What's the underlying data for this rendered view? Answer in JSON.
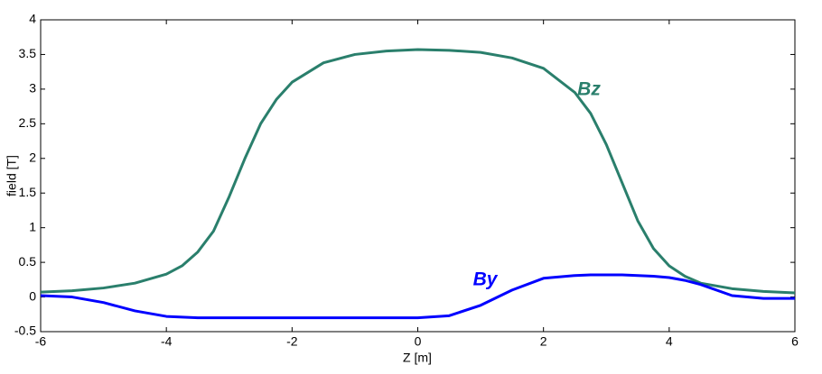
{
  "chart_data": {
    "type": "line",
    "xlabel": "Z [m]",
    "ylabel": "field [T]",
    "x": [
      -6,
      -5.5,
      -5,
      -4.5,
      -4,
      -3.75,
      -3.5,
      -3.25,
      -3,
      -2.75,
      -2.5,
      -2.25,
      -2,
      -1.5,
      -1,
      -0.5,
      0,
      0.5,
      1,
      1.5,
      2,
      2.5,
      2.75,
      3,
      3.25,
      3.5,
      3.75,
      4,
      4.25,
      4.5,
      5,
      5.5,
      6
    ],
    "series": [
      {
        "name": "Bz",
        "color": "#2a7f6c",
        "values": [
          0.07,
          0.09,
          0.13,
          0.2,
          0.33,
          0.45,
          0.65,
          0.95,
          1.45,
          2.0,
          2.5,
          2.85,
          3.1,
          3.38,
          3.5,
          3.55,
          3.57,
          3.56,
          3.53,
          3.45,
          3.3,
          2.95,
          2.65,
          2.2,
          1.65,
          1.1,
          0.7,
          0.45,
          0.3,
          0.2,
          0.12,
          0.08,
          0.06
        ]
      },
      {
        "name": "By",
        "color": "#0000ff",
        "values": [
          0.02,
          0,
          -0.08,
          -0.2,
          -0.28,
          -0.29,
          -0.3,
          -0.3,
          -0.3,
          -0.3,
          -0.3,
          -0.3,
          -0.3,
          -0.3,
          -0.3,
          -0.3,
          -0.3,
          -0.27,
          -0.12,
          0.1,
          0.27,
          0.31,
          0.32,
          0.32,
          0.32,
          0.31,
          0.3,
          0.28,
          0.24,
          0.18,
          0.02,
          -0.02,
          -0.02
        ]
      }
    ],
    "xlim": [
      -6,
      6
    ],
    "xticks": [
      -6,
      -4,
      -2,
      0,
      2,
      4,
      6
    ],
    "ylim": [
      -0.5,
      4
    ],
    "yticks": [
      -0.5,
      0,
      0.5,
      1,
      1.5,
      2,
      2.5,
      3,
      3.5,
      4
    ],
    "grid": false
  }
}
